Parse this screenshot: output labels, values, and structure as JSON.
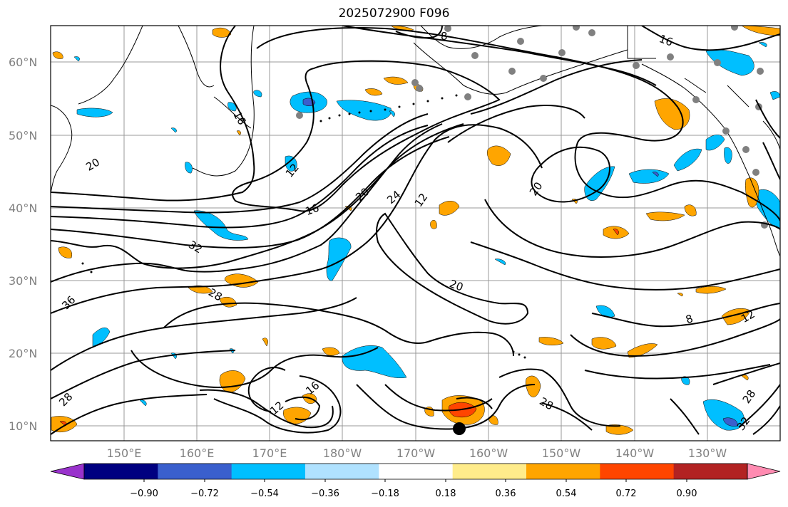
{
  "title": "2025072900 F096",
  "latitude_labels": [
    "60°N",
    "50°N",
    "40°N",
    "30°N",
    "20°N",
    "10°N"
  ],
  "longitude_labels": [
    "150°E",
    "160°E",
    "170°E",
    "180°W",
    "170°W",
    "160°W",
    "150°W",
    "140°W",
    "130°W"
  ],
  "colorbar": {
    "tick_labels": [
      "−0.90",
      "−0.72",
      "−0.54",
      "−0.36",
      "−0.18",
      "0.18",
      "0.36",
      "0.54",
      "0.72",
      "0.90"
    ],
    "colors": [
      "#9932cc",
      "#000080",
      "#3a5fcd",
      "#00bfff",
      "#b0e2ff",
      "#ffffff",
      "#ffec8b",
      "#ffa500",
      "#ff4500",
      "#b22222",
      "#ff8bb1"
    ]
  },
  "contour_labels": [
    "8",
    "16",
    "16",
    "20",
    "12",
    "16",
    "20",
    "24",
    "12",
    "20",
    "32",
    "36",
    "28",
    "20",
    "8",
    "12",
    "12",
    "16",
    "28",
    "28",
    "28",
    "32"
  ],
  "station_marker": "dot"
}
